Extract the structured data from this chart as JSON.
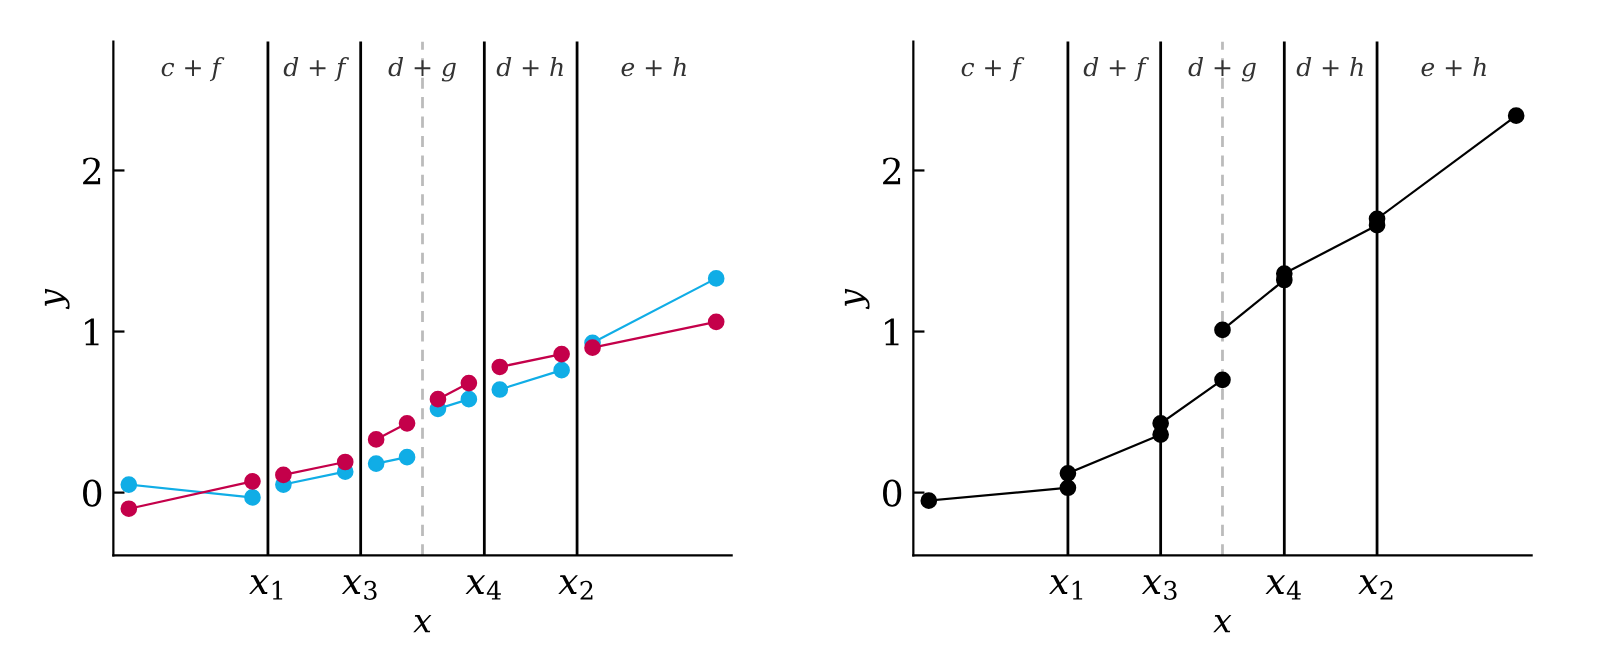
{
  "chart_data": [
    {
      "type": "line",
      "xlabel": "x",
      "ylabel": "y",
      "ylim": [
        -0.39,
        2.8
      ],
      "yticks": [
        0,
        1,
        2
      ],
      "categories": [
        null,
        null,
        null,
        null,
        null,
        null,
        null,
        null,
        null,
        null,
        "x$_{1}$",
        null,
        null,
        null,
        null,
        null,
        "x$_{3}$",
        null,
        null,
        null,
        null,
        null,
        null,
        null,
        "x$_{4}$",
        null,
        null,
        null,
        null,
        null,
        "x$_{2}$",
        null,
        null,
        null,
        null,
        null,
        null,
        null,
        null,
        null,
        null
      ],
      "marker": "circle",
      "line_style": "solid",
      "grid": "x",
      "legend": false,
      "series": [
        {
          "color": "#10ade6",
          "values": [
            null,
            0.05,
            null,
            null,
            null,
            null,
            null,
            null,
            null,
            -0.03,
            null,
            null,
            null,
            null,
            null,
            null,
            null,
            null,
            null,
            null,
            null,
            null,
            null,
            null,
            null,
            null,
            null,
            null,
            null,
            null,
            null,
            null,
            null,
            null,
            null,
            null,
            null,
            null,
            null,
            null,
            null
          ]
        },
        {
          "color": "#10ade6",
          "values": [
            null,
            null,
            null,
            null,
            null,
            null,
            null,
            null,
            null,
            null,
            null,
            0.05,
            null,
            null,
            null,
            0.13,
            null,
            null,
            null,
            null,
            null,
            null,
            null,
            null,
            null,
            null,
            null,
            null,
            null,
            null,
            null,
            null,
            null,
            null,
            null,
            null,
            null,
            null,
            null,
            null,
            null
          ]
        },
        {
          "color": "#10ade6",
          "values": [
            null,
            null,
            null,
            null,
            null,
            null,
            null,
            null,
            null,
            null,
            null,
            null,
            null,
            null,
            null,
            null,
            null,
            0.18,
            null,
            0.22,
            null,
            null,
            null,
            null,
            null,
            null,
            null,
            null,
            null,
            null,
            null,
            null,
            null,
            null,
            null,
            null,
            null,
            null,
            null,
            null,
            null
          ]
        },
        {
          "color": "#10ade6",
          "values": [
            null,
            null,
            null,
            null,
            null,
            null,
            null,
            null,
            null,
            null,
            null,
            null,
            null,
            null,
            null,
            null,
            null,
            null,
            null,
            null,
            null,
            0.52,
            null,
            0.58,
            null,
            null,
            null,
            null,
            null,
            null,
            null,
            null,
            null,
            null,
            null,
            null,
            null,
            null,
            null,
            null,
            null
          ]
        },
        {
          "color": "#10ade6",
          "values": [
            null,
            null,
            null,
            null,
            null,
            null,
            null,
            null,
            null,
            null,
            null,
            null,
            null,
            null,
            null,
            null,
            null,
            null,
            null,
            null,
            null,
            null,
            null,
            null,
            null,
            0.64,
            null,
            null,
            null,
            0.76,
            null,
            null,
            null,
            null,
            null,
            null,
            null,
            null,
            null,
            null,
            null
          ]
        },
        {
          "color": "#10ade6",
          "values": [
            null,
            null,
            null,
            null,
            null,
            null,
            null,
            null,
            null,
            null,
            null,
            null,
            null,
            null,
            null,
            null,
            null,
            null,
            null,
            null,
            null,
            null,
            null,
            null,
            null,
            null,
            null,
            null,
            null,
            null,
            null,
            0.93,
            null,
            null,
            null,
            null,
            null,
            null,
            null,
            1.33,
            null
          ]
        },
        {
          "color": "#c4004a",
          "values": [
            null,
            -0.1,
            null,
            null,
            null,
            null,
            null,
            null,
            null,
            0.07,
            null,
            null,
            null,
            null,
            null,
            null,
            null,
            null,
            null,
            null,
            null,
            null,
            null,
            null,
            null,
            null,
            null,
            null,
            null,
            null,
            null,
            null,
            null,
            null,
            null,
            null,
            null,
            null,
            null,
            null,
            null
          ]
        },
        {
          "color": "#c4004a",
          "values": [
            null,
            null,
            null,
            null,
            null,
            null,
            null,
            null,
            null,
            null,
            null,
            0.11,
            null,
            null,
            null,
            0.19,
            null,
            null,
            null,
            null,
            null,
            null,
            null,
            null,
            null,
            null,
            null,
            null,
            null,
            null,
            null,
            null,
            null,
            null,
            null,
            null,
            null,
            null,
            null,
            null,
            null
          ]
        },
        {
          "color": "#c4004a",
          "values": [
            null,
            null,
            null,
            null,
            null,
            null,
            null,
            null,
            null,
            null,
            null,
            null,
            null,
            null,
            null,
            null,
            null,
            0.33,
            null,
            0.43,
            null,
            null,
            null,
            null,
            null,
            null,
            null,
            null,
            null,
            null,
            null,
            null,
            null,
            null,
            null,
            null,
            null,
            null,
            null,
            null,
            null
          ]
        },
        {
          "color": "#c4004a",
          "values": [
            null,
            null,
            null,
            null,
            null,
            null,
            null,
            null,
            null,
            null,
            null,
            null,
            null,
            null,
            null,
            null,
            null,
            null,
            null,
            null,
            null,
            0.58,
            null,
            0.68,
            null,
            null,
            null,
            null,
            null,
            null,
            null,
            null,
            null,
            null,
            null,
            null,
            null,
            null,
            null,
            null,
            null
          ]
        },
        {
          "color": "#c4004a",
          "values": [
            null,
            null,
            null,
            null,
            null,
            null,
            null,
            null,
            null,
            null,
            null,
            null,
            null,
            null,
            null,
            null,
            null,
            null,
            null,
            null,
            null,
            null,
            null,
            null,
            null,
            0.78,
            null,
            null,
            null,
            0.86,
            null,
            null,
            null,
            null,
            null,
            null,
            null,
            null,
            null,
            null,
            null
          ]
        },
        {
          "color": "#c4004a",
          "values": [
            null,
            null,
            null,
            null,
            null,
            null,
            null,
            null,
            null,
            null,
            null,
            null,
            null,
            null,
            null,
            null,
            null,
            null,
            null,
            null,
            null,
            null,
            null,
            null,
            null,
            null,
            null,
            null,
            null,
            null,
            null,
            0.9,
            null,
            null,
            null,
            null,
            null,
            null,
            null,
            1.06,
            null
          ]
        }
      ],
      "annotations": [
        "c + f",
        "d + f",
        "d + g",
        "d + h",
        "e + h"
      ]
    },
    {
      "type": "line",
      "xlabel": "x",
      "ylabel": "y",
      "ylim": [
        -0.39,
        2.8
      ],
      "yticks": [
        0,
        1,
        2
      ],
      "categories": [
        null,
        null,
        null,
        null,
        null,
        null,
        null,
        null,
        null,
        null,
        "x$_{1}$",
        null,
        null,
        null,
        null,
        null,
        "x$_{3}$",
        null,
        null,
        null,
        null,
        null,
        null,
        null,
        "x$_{4}$",
        null,
        null,
        null,
        null,
        null,
        "x$_{2}$",
        null,
        null,
        null,
        null,
        null,
        null,
        null,
        null,
        null,
        null
      ],
      "marker": "circle",
      "line_style": "solid",
      "grid": "x",
      "legend": false,
      "series": [
        {
          "color": "#000000",
          "values": [
            null,
            -0.05,
            null,
            null,
            null,
            null,
            null,
            null,
            null,
            null,
            0.03,
            null,
            null,
            null,
            null,
            null,
            null,
            null,
            null,
            null,
            null,
            null,
            null,
            null,
            null,
            null,
            null,
            null,
            null,
            null,
            null,
            null,
            null,
            null,
            null,
            null,
            null,
            null,
            null,
            null,
            null
          ]
        },
        {
          "color": "#000000",
          "values": [
            null,
            null,
            null,
            null,
            null,
            null,
            null,
            null,
            null,
            null,
            0.12,
            null,
            null,
            null,
            null,
            null,
            0.36,
            null,
            null,
            null,
            null,
            null,
            null,
            null,
            null,
            null,
            null,
            null,
            null,
            null,
            null,
            null,
            null,
            null,
            null,
            null,
            null,
            null,
            null,
            null,
            null
          ]
        },
        {
          "color": "#000000",
          "values": [
            null,
            null,
            null,
            null,
            null,
            null,
            null,
            null,
            null,
            null,
            null,
            null,
            null,
            null,
            null,
            null,
            0.43,
            null,
            null,
            null,
            0.7,
            null,
            null,
            null,
            null,
            null,
            null,
            null,
            null,
            null,
            null,
            null,
            null,
            null,
            null,
            null,
            null,
            null,
            null,
            null,
            null
          ]
        },
        {
          "color": "#000000",
          "values": [
            null,
            null,
            null,
            null,
            null,
            null,
            null,
            null,
            null,
            null,
            null,
            null,
            null,
            null,
            null,
            null,
            null,
            null,
            null,
            null,
            1.01,
            null,
            null,
            null,
            1.32,
            null,
            null,
            null,
            null,
            null,
            null,
            null,
            null,
            null,
            null,
            null,
            null,
            null,
            null,
            null,
            null
          ]
        },
        {
          "color": "#000000",
          "values": [
            null,
            null,
            null,
            null,
            null,
            null,
            null,
            null,
            null,
            null,
            null,
            null,
            null,
            null,
            null,
            null,
            null,
            null,
            null,
            null,
            null,
            null,
            null,
            null,
            1.36,
            null,
            null,
            null,
            null,
            null,
            1.66,
            null,
            null,
            null,
            null,
            null,
            null,
            null,
            null,
            null,
            null
          ]
        },
        {
          "color": "#000000",
          "values": [
            null,
            null,
            null,
            null,
            null,
            null,
            null,
            null,
            null,
            null,
            null,
            null,
            null,
            null,
            null,
            null,
            null,
            null,
            null,
            null,
            null,
            null,
            null,
            null,
            null,
            null,
            null,
            null,
            null,
            null,
            1.7,
            null,
            null,
            null,
            null,
            null,
            null,
            null,
            null,
            2.34,
            null
          ]
        }
      ],
      "annotations": [
        "c + f",
        "d + f",
        "d + g",
        "d + h",
        "e + h"
      ]
    }
  ]
}
